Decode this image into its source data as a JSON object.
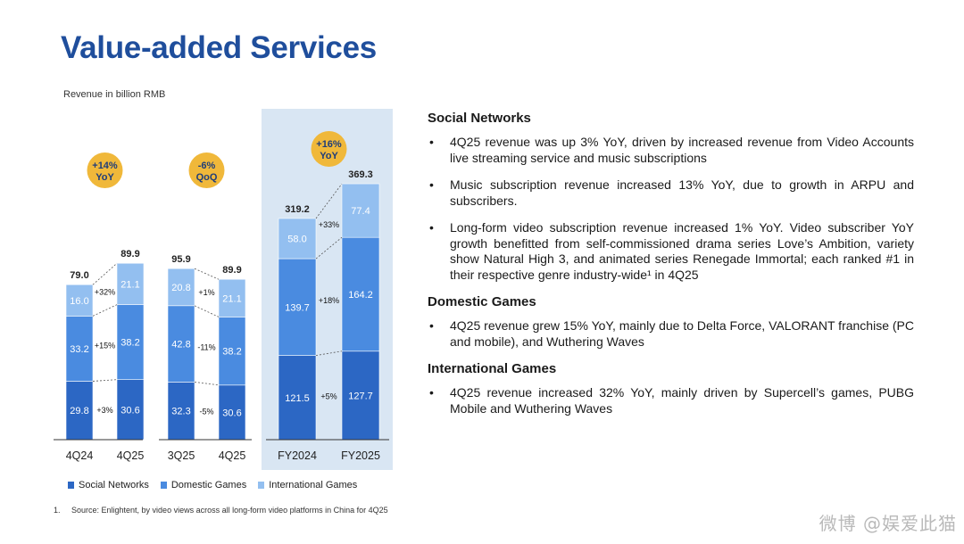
{
  "page": {
    "title": "Value-added Services",
    "subtitle": "Revenue in billion RMB"
  },
  "chart_data": {
    "type": "bar",
    "stacked": true,
    "ylabel": "Revenue in billion RMB",
    "colors": {
      "social_networks": "#2c67c4",
      "domestic_games": "#4a8be0",
      "international_games": "#93bff0"
    },
    "groups": [
      {
        "badge": [
          "+14%",
          "YoY"
        ],
        "bars": [
          {
            "category": "4Q24",
            "total": "79.0",
            "values": {
              "social_networks": 29.8,
              "domestic_games": 33.2,
              "international_games": 16.0
            }
          },
          {
            "category": "4Q25",
            "total": "89.9",
            "values": {
              "social_networks": 30.6,
              "domestic_games": 38.2,
              "international_games": 21.1
            }
          }
        ],
        "changes": {
          "social_networks": "+3%",
          "domestic_games": "+15%",
          "international_games": "+32%"
        }
      },
      {
        "badge": [
          "-6%",
          "QoQ"
        ],
        "bars": [
          {
            "category": "3Q25",
            "total": "95.9",
            "values": {
              "social_networks": 32.3,
              "domestic_games": 42.8,
              "international_games": 20.8
            }
          },
          {
            "category": "4Q25",
            "total": "89.9",
            "values": {
              "social_networks": 30.6,
              "domestic_games": 38.2,
              "international_games": 21.1
            }
          }
        ],
        "changes": {
          "social_networks": "-5%",
          "domestic_games": "-11%",
          "international_games": "+1%"
        }
      },
      {
        "badge": [
          "+16%",
          "YoY"
        ],
        "highlighted": true,
        "bars": [
          {
            "category": "FY2024",
            "total": "319.2",
            "values": {
              "social_networks": 121.5,
              "domestic_games": 139.7,
              "international_games": 58.0
            }
          },
          {
            "category": "FY2025",
            "total": "369.3",
            "values": {
              "social_networks": 127.7,
              "domestic_games": 164.2,
              "international_games": 77.4
            }
          }
        ],
        "changes": {
          "social_networks": "+5%",
          "domestic_games": "+18%",
          "international_games": "+33%"
        }
      }
    ],
    "legend": [
      {
        "key": "social_networks",
        "label": "Social Networks"
      },
      {
        "key": "domestic_games",
        "label": "Domestic Games"
      },
      {
        "key": "international_games",
        "label": "International Games"
      }
    ]
  },
  "footnote": {
    "number": "1.",
    "text": "Source: Enlightent, by video views across all long-form video platforms in China for 4Q25"
  },
  "right": {
    "sections": [
      {
        "title": "Social Networks",
        "bullets": [
          "4Q25 revenue was up 3% YoY, driven by increased revenue from Video Accounts live streaming service and music subscriptions",
          "Music subscription revenue increased 13% YoY, due to growth in ARPU and subscribers.",
          "Long-form video subscription revenue increased 1% YoY. Video subscriber YoY growth benefitted from self-commissioned drama series Love’s Ambition, variety show Natural High 3, and animated series Renegade Immortal; each ranked #1 in their respective genre industry-wide¹ in 4Q25"
        ]
      },
      {
        "title": "Domestic Games",
        "bullets": [
          "4Q25 revenue grew 15% YoY, mainly due to Delta Force, VALORANT franchise (PC and mobile), and Wuthering Waves"
        ]
      },
      {
        "title": "International Games",
        "bullets": [
          "4Q25 revenue increased 32% YoY, mainly driven by Supercell’s games, PUBG Mobile and Wuthering Waves"
        ]
      }
    ]
  },
  "watermark": "微博 @娱爱此猫"
}
